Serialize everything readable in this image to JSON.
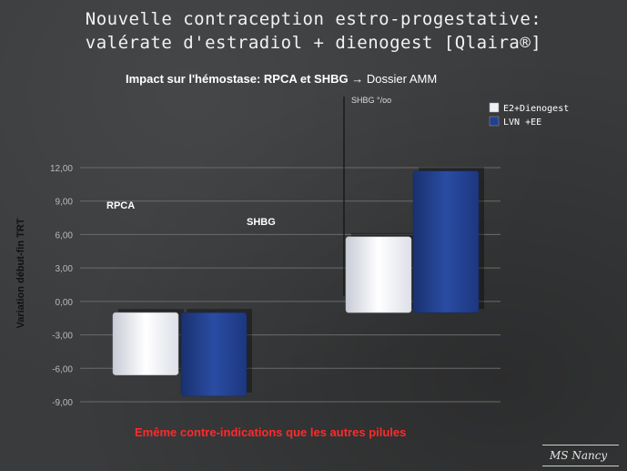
{
  "slide": {
    "title_line1": "Nouvelle contraception estro-progestative:",
    "title_line2": "valérate d'estradiol + dienogest [Qlaira®]",
    "subtitle_bold": "Impact sur l'hémostase: RPCA et SHBG",
    "subtitle_arrow": "→",
    "subtitle_rest": "Dossier AMM",
    "footer": "Emême contre-indications  que les autres pilules",
    "signature": "MS Nancy"
  },
  "chart_data": {
    "type": "bar",
    "title": "",
    "ylabel": "Variation début-fin TRT",
    "xlabel": "",
    "ylim": [
      -9,
      12
    ],
    "yticks": [
      "12,00",
      "9,00",
      "6,00",
      "3,00",
      "0,00",
      "-3,00",
      "-6,00",
      "-9,00"
    ],
    "grid": true,
    "legend_position": "top-right",
    "categories": [
      "RPCA",
      "SHBG"
    ],
    "annotations": [
      "SHBG °/oo"
    ],
    "series": [
      {
        "name": "E2+Dienogest",
        "color": "#eef0f5",
        "values": [
          -5.6,
          6.8
        ]
      },
      {
        "name": "LVN +EE",
        "color": "#22418f",
        "values": [
          -7.5,
          12.7
        ]
      }
    ],
    "bar_baselines": [
      -1.0,
      -1.0
    ]
  }
}
